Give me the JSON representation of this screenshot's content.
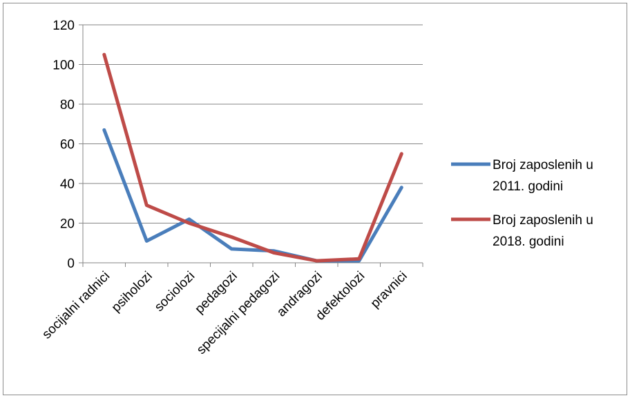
{
  "chart_data": {
    "type": "line",
    "title": "",
    "xlabel": "",
    "ylabel": "",
    "ylim": [
      0,
      120
    ],
    "yticks": [
      0,
      20,
      40,
      60,
      80,
      100,
      120
    ],
    "grid": true,
    "legend_position": "right",
    "categories": [
      "socijalni radnici",
      "psiholozi",
      "sociolozi",
      "pedagozi",
      "specijalni pedagozi",
      "andragozi",
      "defektolozi",
      "pravnici"
    ],
    "series": [
      {
        "name_lines": [
          "Broj zaposlenih u",
          "2011. godini"
        ],
        "color": "#4a7ebb",
        "values": [
          67,
          11,
          22,
          7,
          6,
          1,
          1,
          38
        ]
      },
      {
        "name_lines": [
          "Broj zaposlenih u",
          "2018. godini"
        ],
        "color": "#be4b48",
        "values": [
          105,
          29,
          20,
          13,
          5,
          1,
          2,
          55
        ]
      }
    ]
  }
}
